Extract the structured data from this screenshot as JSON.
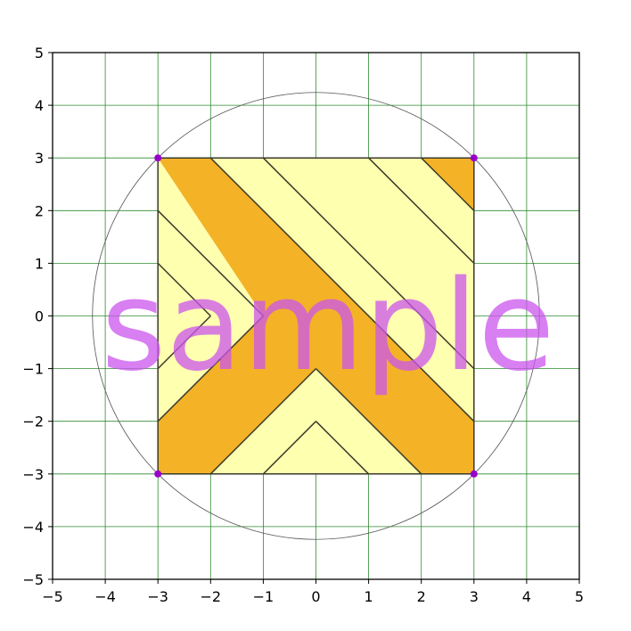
{
  "chart_data": {
    "type": "diagram",
    "xlim": [
      -5,
      5
    ],
    "ylim": [
      -5,
      5
    ],
    "x_ticks": [
      "−5",
      "−4",
      "−3",
      "−2",
      "−1",
      "0",
      "1",
      "2",
      "3",
      "4",
      "5"
    ],
    "y_ticks": [
      "−5",
      "−4",
      "−3",
      "−2",
      "−1",
      "0",
      "1",
      "2",
      "3",
      "4",
      "5"
    ],
    "grid": true,
    "colors": {
      "light_fill": "#ffffb0",
      "dark_fill": "#f4b227",
      "outline": "#3a3a2a",
      "grid": "#2e8b2e",
      "circle": "#555555",
      "vertex": "#9900cc",
      "watermark": "#cc55ee"
    },
    "square": [
      [
        -3,
        -3
      ],
      [
        3,
        -3
      ],
      [
        3,
        3
      ],
      [
        -3,
        3
      ]
    ],
    "circle": {
      "center": [
        0,
        0
      ],
      "radius": 4.243
    },
    "vertices": [
      [
        -3,
        3
      ],
      [
        3,
        3
      ],
      [
        -3,
        -3
      ],
      [
        3,
        -3
      ]
    ],
    "dark_regions": [
      [
        [
          -3,
          3
        ],
        [
          -2,
          3
        ],
        [
          3,
          -2
        ],
        [
          3,
          -3
        ],
        [
          2,
          -3
        ],
        [
          0,
          -1
        ],
        [
          -2,
          -3
        ],
        [
          -3,
          -3
        ],
        [
          -3,
          -2
        ],
        [
          -1,
          0
        ]
      ],
      [
        [
          2,
          3
        ],
        [
          3,
          3
        ],
        [
          3,
          2
        ]
      ]
    ],
    "lines": [
      [
        [
          -2,
          3
        ],
        [
          3,
          -2
        ]
      ],
      [
        [
          -1,
          3
        ],
        [
          3,
          -1
        ]
      ],
      [
        [
          1,
          3
        ],
        [
          3,
          1
        ]
      ],
      [
        [
          2,
          3
        ],
        [
          3,
          2
        ]
      ],
      [
        [
          -3,
          2
        ],
        [
          -1,
          0
        ]
      ],
      [
        [
          -1,
          0
        ],
        [
          -3,
          -2
        ]
      ],
      [
        [
          -3,
          1
        ],
        [
          -2,
          0
        ]
      ],
      [
        [
          -2,
          0
        ],
        [
          -3,
          -1
        ]
      ],
      [
        [
          -2,
          -3
        ],
        [
          0,
          -1
        ]
      ],
      [
        [
          0,
          -1
        ],
        [
          2,
          -3
        ]
      ],
      [
        [
          -1,
          -3
        ],
        [
          0,
          -2
        ]
      ],
      [
        [
          0,
          -2
        ],
        [
          1,
          -3
        ]
      ]
    ],
    "watermark": "sample"
  }
}
